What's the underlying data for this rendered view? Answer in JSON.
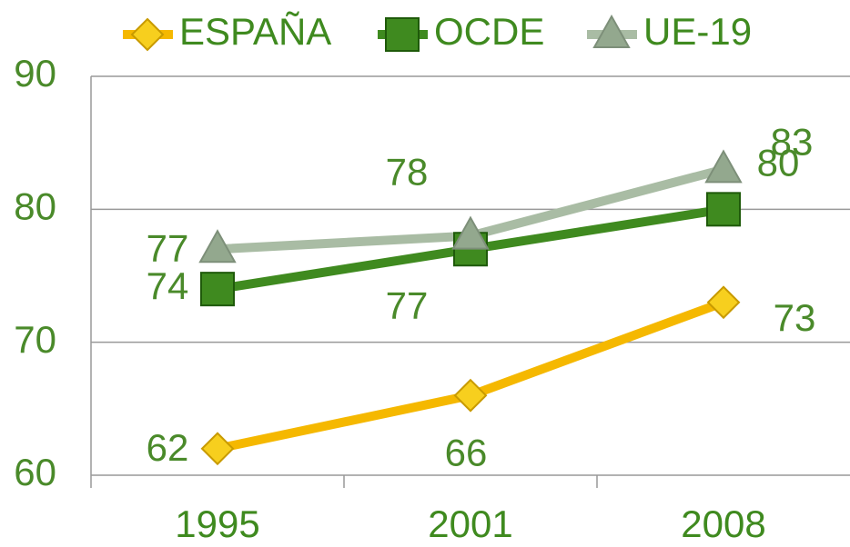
{
  "chart_data": {
    "type": "line",
    "categories": [
      "1995",
      "2001",
      "2008"
    ],
    "series": [
      {
        "name": "ESPAÑA",
        "color": "#f5b800",
        "values": [
          62,
          66,
          73
        ]
      },
      {
        "name": "OCDE",
        "color": "#3f8a1f",
        "values": [
          74,
          77,
          80
        ]
      },
      {
        "name": "UE-19",
        "color": "#a9bca4",
        "values": [
          77,
          78,
          83
        ]
      }
    ],
    "ylim": [
      60,
      90
    ],
    "yticks": [
      60,
      70,
      80,
      90
    ],
    "grid": true,
    "legend": "top"
  }
}
